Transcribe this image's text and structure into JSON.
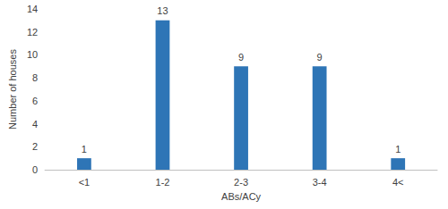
{
  "chart_data": {
    "type": "bar",
    "x_label": "ABs/ACy",
    "y_label": "Number of houses",
    "categories": [
      "<1",
      "1-2",
      "2-3",
      "3-4",
      "4<"
    ],
    "values": [
      1,
      13,
      9,
      9,
      1
    ],
    "color": "#2e75b6",
    "ylim": [
      0,
      14
    ],
    "yticks": [
      0,
      2,
      4,
      6,
      8,
      10,
      12,
      14
    ],
    "grid": false,
    "data_labels": true
  }
}
